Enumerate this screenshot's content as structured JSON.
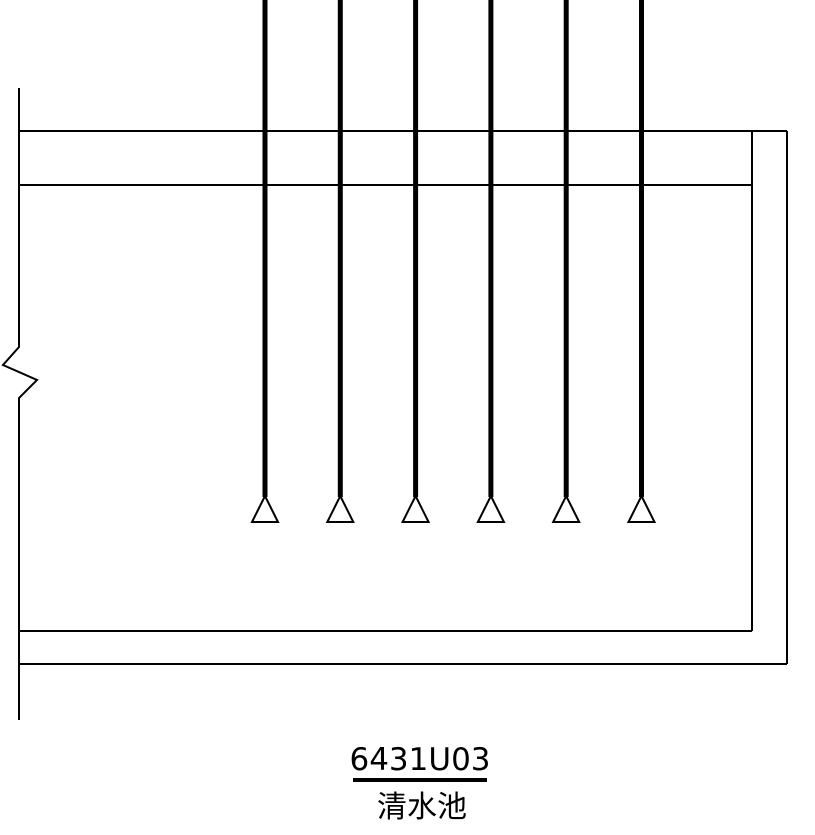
{
  "drawing": {
    "tag_number": "6431U03",
    "tag_name": "清水池",
    "nozzle_count": 6
  }
}
